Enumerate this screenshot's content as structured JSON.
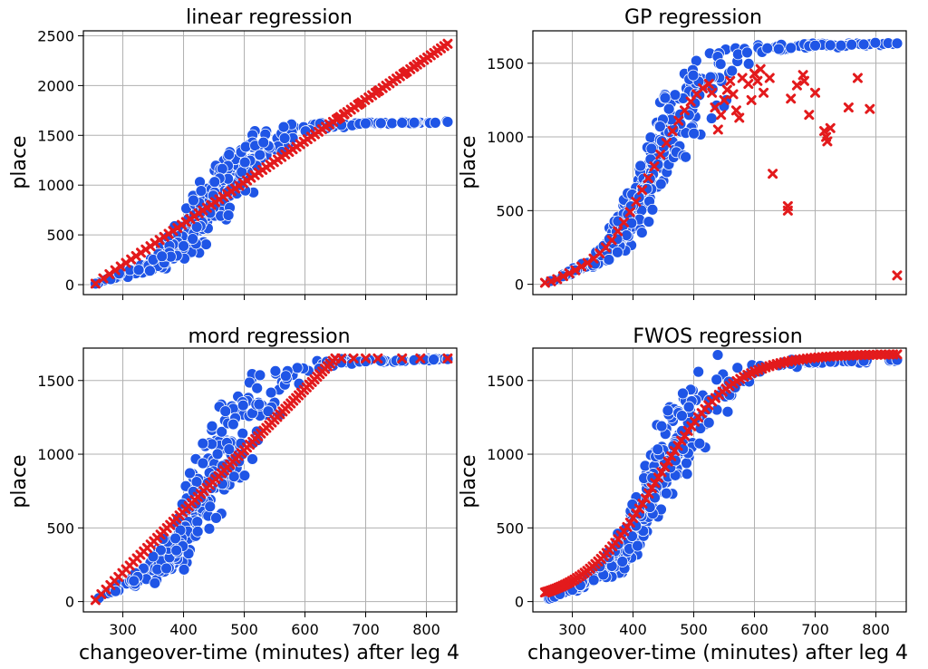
{
  "chart_data": [
    {
      "type": "scatter",
      "title": "linear regression",
      "xlabel": "",
      "ylabel": "place",
      "xlim": [
        235,
        850
      ],
      "ylim": [
        -100,
        2550
      ],
      "xticks": [
        300,
        400,
        500,
        600,
        700,
        800
      ],
      "yticks": [
        0,
        500,
        1000,
        1500,
        2000,
        2500
      ],
      "show_xtick_labels": false,
      "grid": true,
      "actual_color": "#1f55e6",
      "predicted_color": "#e31a1c",
      "actual_anchors": [
        [
          255,
          10
        ],
        [
          270,
          40
        ],
        [
          285,
          70
        ],
        [
          300,
          110
        ],
        [
          320,
          140
        ],
        [
          340,
          180
        ],
        [
          360,
          240
        ],
        [
          380,
          330
        ],
        [
          400,
          450
        ],
        [
          420,
          620
        ],
        [
          440,
          780
        ],
        [
          460,
          920
        ],
        [
          480,
          1060
        ],
        [
          500,
          1180
        ],
        [
          520,
          1290
        ],
        [
          540,
          1380
        ],
        [
          560,
          1450
        ],
        [
          580,
          1510
        ],
        [
          600,
          1560
        ],
        [
          620,
          1590
        ],
        [
          650,
          1600
        ],
        [
          700,
          1620
        ],
        [
          750,
          1625
        ],
        [
          800,
          1630
        ],
        [
          835,
          1635
        ]
      ],
      "actual_spread": [
        [
          255,
          0
        ],
        [
          300,
          40
        ],
        [
          340,
          80
        ],
        [
          380,
          220
        ],
        [
          420,
          380
        ],
        [
          460,
          420
        ],
        [
          500,
          400
        ],
        [
          540,
          300
        ],
        [
          580,
          150
        ],
        [
          620,
          60
        ],
        [
          700,
          20
        ],
        [
          835,
          10
        ]
      ],
      "actual_count": 330,
      "actual_seed": 11,
      "predicted": {
        "kind": "linear",
        "x0": 255,
        "y0": 10,
        "x1": 835,
        "y1": 2420,
        "count": 90
      }
    },
    {
      "type": "scatter",
      "title": "GP regression",
      "xlabel": "",
      "ylabel": "place",
      "xlim": [
        235,
        850
      ],
      "ylim": [
        -70,
        1720
      ],
      "xticks": [
        300,
        400,
        500,
        600,
        700,
        800
      ],
      "yticks": [
        0,
        500,
        1000,
        1500
      ],
      "show_xtick_labels": false,
      "grid": true,
      "actual_color": "#1f55e6",
      "predicted_color": "#e31a1c",
      "actual_anchors": [
        [
          255,
          10
        ],
        [
          270,
          30
        ],
        [
          285,
          60
        ],
        [
          300,
          90
        ],
        [
          320,
          130
        ],
        [
          340,
          180
        ],
        [
          360,
          250
        ],
        [
          380,
          360
        ],
        [
          400,
          500
        ],
        [
          420,
          680
        ],
        [
          440,
          860
        ],
        [
          460,
          1010
        ],
        [
          480,
          1140
        ],
        [
          500,
          1250
        ],
        [
          520,
          1340
        ],
        [
          540,
          1420
        ],
        [
          560,
          1480
        ],
        [
          580,
          1530
        ],
        [
          600,
          1570
        ],
        [
          620,
          1590
        ],
        [
          650,
          1600
        ],
        [
          700,
          1620
        ],
        [
          750,
          1625
        ],
        [
          800,
          1630
        ],
        [
          835,
          1635
        ]
      ],
      "actual_spread": [
        [
          255,
          0
        ],
        [
          300,
          30
        ],
        [
          340,
          70
        ],
        [
          380,
          200
        ],
        [
          420,
          360
        ],
        [
          460,
          400
        ],
        [
          500,
          380
        ],
        [
          540,
          300
        ],
        [
          580,
          150
        ],
        [
          620,
          60
        ],
        [
          700,
          20
        ],
        [
          835,
          10
        ]
      ],
      "actual_count": 330,
      "actual_seed": 23,
      "predicted": {
        "kind": "points",
        "points": [
          [
            255,
            10
          ],
          [
            265,
            20
          ],
          [
            275,
            35
          ],
          [
            285,
            55
          ],
          [
            295,
            75
          ],
          [
            305,
            95
          ],
          [
            315,
            120
          ],
          [
            325,
            145
          ],
          [
            335,
            175
          ],
          [
            345,
            210
          ],
          [
            355,
            250
          ],
          [
            365,
            300
          ],
          [
            375,
            360
          ],
          [
            385,
            420
          ],
          [
            395,
            490
          ],
          [
            405,
            560
          ],
          [
            415,
            640
          ],
          [
            425,
            720
          ],
          [
            435,
            800
          ],
          [
            445,
            880
          ],
          [
            455,
            960
          ],
          [
            465,
            1040
          ],
          [
            475,
            1110
          ],
          [
            485,
            1180
          ],
          [
            495,
            1240
          ],
          [
            505,
            1290
          ],
          [
            515,
            1330
          ],
          [
            525,
            1360
          ],
          [
            530,
            1300
          ],
          [
            535,
            1200
          ],
          [
            540,
            1050
          ],
          [
            545,
            1150
          ],
          [
            550,
            1250
          ],
          [
            555,
            1320
          ],
          [
            560,
            1380
          ],
          [
            565,
            1290
          ],
          [
            570,
            1180
          ],
          [
            575,
            1130
          ],
          [
            580,
            1400
          ],
          [
            590,
            1360
          ],
          [
            595,
            1250
          ],
          [
            600,
            1430
          ],
          [
            605,
            1380
          ],
          [
            610,
            1460
          ],
          [
            615,
            1300
          ],
          [
            625,
            1400
          ],
          [
            630,
            750
          ],
          [
            655,
            530
          ],
          [
            655,
            500
          ],
          [
            660,
            1260
          ],
          [
            670,
            1350
          ],
          [
            680,
            1420
          ],
          [
            682,
            1380
          ],
          [
            690,
            1150
          ],
          [
            700,
            1300
          ],
          [
            715,
            1040
          ],
          [
            718,
            1000
          ],
          [
            720,
            970
          ],
          [
            725,
            1060
          ],
          [
            755,
            1200
          ],
          [
            770,
            1400
          ],
          [
            790,
            1190
          ],
          [
            835,
            60
          ]
        ]
      }
    },
    {
      "type": "scatter",
      "title": "mord regression",
      "xlabel": "changeover-time (minutes) after leg 4",
      "ylabel": "place",
      "xlim": [
        235,
        850
      ],
      "ylim": [
        -70,
        1720
      ],
      "xticks": [
        300,
        400,
        500,
        600,
        700,
        800
      ],
      "yticks": [
        0,
        500,
        1000,
        1500
      ],
      "show_xtick_labels": true,
      "grid": true,
      "actual_color": "#1f55e6",
      "predicted_color": "#e31a1c",
      "actual_anchors": [
        [
          255,
          10
        ],
        [
          270,
          40
        ],
        [
          285,
          70
        ],
        [
          300,
          110
        ],
        [
          320,
          140
        ],
        [
          340,
          180
        ],
        [
          360,
          250
        ],
        [
          380,
          350
        ],
        [
          400,
          480
        ],
        [
          420,
          650
        ],
        [
          440,
          810
        ],
        [
          460,
          950
        ],
        [
          480,
          1080
        ],
        [
          500,
          1200
        ],
        [
          520,
          1300
        ],
        [
          540,
          1390
        ],
        [
          560,
          1460
        ],
        [
          580,
          1520
        ],
        [
          600,
          1570
        ],
        [
          620,
          1600
        ],
        [
          650,
          1620
        ],
        [
          700,
          1630
        ],
        [
          750,
          1635
        ],
        [
          800,
          1640
        ],
        [
          835,
          1645
        ]
      ],
      "actual_spread": [
        [
          255,
          0
        ],
        [
          300,
          40
        ],
        [
          340,
          80
        ],
        [
          380,
          220
        ],
        [
          420,
          380
        ],
        [
          460,
          420
        ],
        [
          500,
          400
        ],
        [
          540,
          300
        ],
        [
          580,
          150
        ],
        [
          620,
          60
        ],
        [
          700,
          20
        ],
        [
          835,
          10
        ]
      ],
      "actual_count": 330,
      "actual_seed": 37,
      "predicted": {
        "kind": "linear_clip",
        "x0": 255,
        "y0": 10,
        "x1": 650,
        "y1": 1650,
        "cap": 1650,
        "extra_x": [
          660,
          680,
          700,
          720,
          760,
          790,
          835
        ],
        "count": 80
      }
    },
    {
      "type": "scatter",
      "title": "FWOS regression",
      "xlabel": "changeover-time (minutes) after leg 4",
      "ylabel": "place",
      "xlim": [
        235,
        850
      ],
      "ylim": [
        -70,
        1720
      ],
      "xticks": [
        300,
        400,
        500,
        600,
        700,
        800
      ],
      "yticks": [
        0,
        500,
        1000,
        1500
      ],
      "show_xtick_labels": true,
      "grid": true,
      "actual_color": "#1f55e6",
      "predicted_color": "#e31a1c",
      "actual_anchors": [
        [
          255,
          10
        ],
        [
          270,
          30
        ],
        [
          285,
          60
        ],
        [
          300,
          90
        ],
        [
          320,
          130
        ],
        [
          340,
          180
        ],
        [
          360,
          250
        ],
        [
          380,
          360
        ],
        [
          400,
          500
        ],
        [
          420,
          680
        ],
        [
          440,
          860
        ],
        [
          460,
          1010
        ],
        [
          480,
          1140
        ],
        [
          500,
          1250
        ],
        [
          520,
          1340
        ],
        [
          540,
          1420
        ],
        [
          560,
          1480
        ],
        [
          580,
          1530
        ],
        [
          600,
          1570
        ],
        [
          620,
          1590
        ],
        [
          650,
          1610
        ],
        [
          700,
          1625
        ],
        [
          750,
          1630
        ],
        [
          800,
          1635
        ],
        [
          835,
          1640
        ]
      ],
      "actual_spread": [
        [
          255,
          0
        ],
        [
          300,
          30
        ],
        [
          340,
          70
        ],
        [
          380,
          200
        ],
        [
          420,
          360
        ],
        [
          460,
          400
        ],
        [
          500,
          380
        ],
        [
          540,
          300
        ],
        [
          580,
          150
        ],
        [
          620,
          60
        ],
        [
          700,
          20
        ],
        [
          835,
          10
        ]
      ],
      "actual_count": 330,
      "actual_seed": 53,
      "predicted": {
        "kind": "sigmoid",
        "xmin": 255,
        "xmax": 835,
        "center": 440,
        "scale": 62,
        "low": -20,
        "high": 1680,
        "count": 110
      }
    }
  ]
}
